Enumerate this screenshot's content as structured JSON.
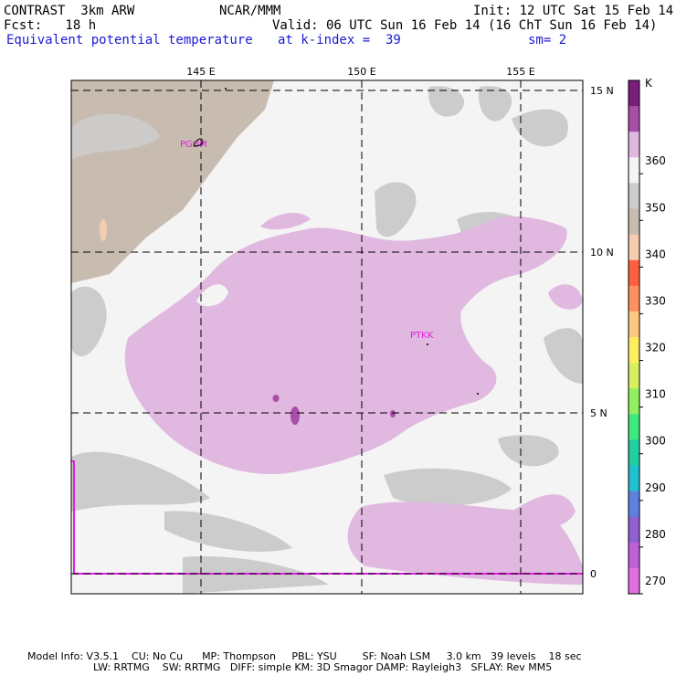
{
  "header": {
    "title": "CONTRAST  3km ARW",
    "center": "NCAR/MMM",
    "init": "Init: 12 UTC Sat 15 Feb 14",
    "fcst": "Fcst:   18 h",
    "valid": "Valid: 06 UTC Sun 16 Feb 14 (16 ChT Sun 16 Feb 14)",
    "field": "Equivalent potential temperature",
    "level": "at k-index =  39",
    "smooth": "sm= 2"
  },
  "map": {
    "lon_labels": [
      "145 E",
      "150 E",
      "155 E"
    ],
    "lat_labels": [
      "15 N",
      "10 N",
      "5 N",
      "0"
    ],
    "stations": [
      "PGUM",
      "PTKK"
    ]
  },
  "legend": {
    "unit": "K",
    "ticks": [
      "360",
      "350",
      "340",
      "330",
      "320",
      "310",
      "300",
      "290",
      "280",
      "270"
    ],
    "colors": [
      "#7a1e7a",
      "#a84ea8",
      "#e0b8e0",
      "#f4f4f4",
      "#cccccc",
      "#c8bcb0",
      "#f4ccb0",
      "#ff6040",
      "#ff9060",
      "#ffc880",
      "#ffee60",
      "#d8f060",
      "#90f060",
      "#40e880",
      "#20d0a0",
      "#20c0d0",
      "#6080e0",
      "#9060d0",
      "#c060d8",
      "#e070e0"
    ]
  },
  "footer": {
    "line1": "Model Info: V3.5.1    CU: No Cu      MP: Thompson     PBL: YSU        SF: Noah LSM     3.0 km   39 levels    18 sec",
    "line2": "LW: RRTMG    SW: RRTMG   DIFF: simple KM: 3D Smagor DAMP: Rayleigh3   SFLAY: Rev MM5"
  }
}
